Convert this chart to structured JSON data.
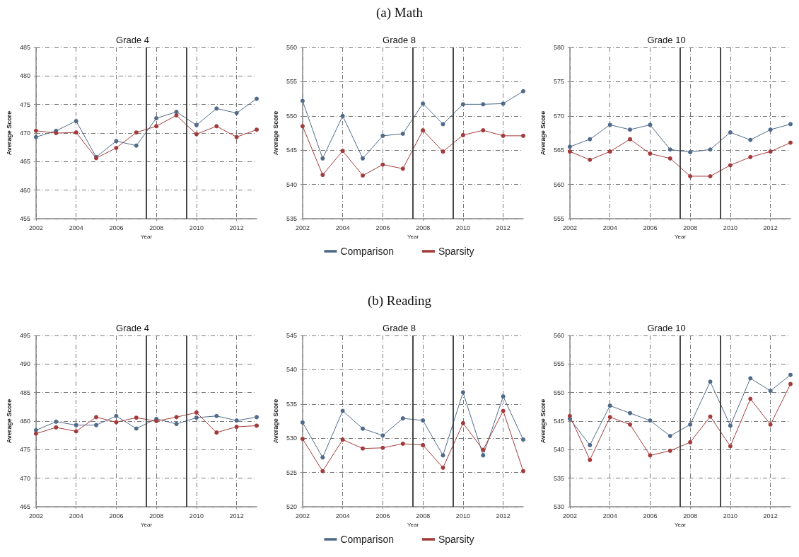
{
  "chart_data": [
    {
      "type": "line",
      "title": "Grade 4",
      "xlabel": "Year",
      "ylabel": "Average Score",
      "x": [
        2002,
        2003,
        2004,
        2005,
        2006,
        2007,
        2008,
        2009,
        2010,
        2011,
        2012,
        2013
      ],
      "xlim": [
        2002,
        2013
      ],
      "xticks": [
        2002,
        2004,
        2006,
        2008,
        2010,
        2012
      ],
      "ylim": [
        455,
        485
      ],
      "yticks": [
        455,
        460,
        465,
        470,
        475,
        480,
        485
      ],
      "grid": true,
      "marker": "circle",
      "legend": false,
      "ref_lines": [
        {
          "axis": "x",
          "value": 2007.5,
          "color": "#333333"
        },
        {
          "axis": "x",
          "value": 2009.5,
          "color": "#333333"
        }
      ],
      "series": [
        {
          "color": "#4f6a8a",
          "values": [
            469.3,
            470.4,
            472.1,
            465.8,
            468.6,
            467.8,
            472.6,
            473.7,
            471.4,
            474.3,
            473.5,
            476.0
          ]
        },
        {
          "color": "#a33b3b",
          "values": [
            470.4,
            470.0,
            470.1,
            465.6,
            467.4,
            470.1,
            471.2,
            473.1,
            469.8,
            471.2,
            469.3,
            470.6
          ]
        }
      ]
    },
    {
      "type": "line",
      "title": "Grade 8",
      "xlabel": "Year",
      "ylabel": "Average Score",
      "annotations": [
        "(a) Math"
      ],
      "x": [
        2002,
        2003,
        2004,
        2005,
        2006,
        2007,
        2008,
        2009,
        2010,
        2011,
        2012,
        2013
      ],
      "xlim": [
        2002,
        2013
      ],
      "xticks": [
        2002,
        2004,
        2006,
        2008,
        2010,
        2012
      ],
      "ylim": [
        535,
        560
      ],
      "yticks": [
        535,
        540,
        545,
        550,
        555,
        560
      ],
      "grid": true,
      "marker": "circle",
      "legend": "bottom",
      "ref_lines": [
        {
          "axis": "x",
          "value": 2007.5,
          "color": "#333333"
        },
        {
          "axis": "x",
          "value": 2009.5,
          "color": "#333333"
        }
      ],
      "series": [
        {
          "name": "Comparison",
          "color": "#4f6a8a",
          "values": [
            552.2,
            543.8,
            550.0,
            543.8,
            547.1,
            547.4,
            551.8,
            548.8,
            551.7,
            551.7,
            551.8,
            553.6
          ]
        },
        {
          "name": "Sparsity",
          "color": "#a33b3b",
          "values": [
            548.5,
            541.4,
            544.9,
            541.3,
            542.9,
            542.3,
            547.9,
            544.8,
            547.2,
            547.9,
            547.1,
            547.1
          ]
        }
      ]
    },
    {
      "type": "line",
      "title": "Grade 10",
      "xlabel": "Year",
      "ylabel": "Average Score",
      "x": [
        2002,
        2003,
        2004,
        2005,
        2006,
        2007,
        2008,
        2009,
        2010,
        2011,
        2012,
        2013
      ],
      "xlim": [
        2002,
        2013
      ],
      "xticks": [
        2002,
        2004,
        2006,
        2008,
        2010,
        2012
      ],
      "ylim": [
        555,
        580
      ],
      "yticks": [
        555,
        560,
        565,
        570,
        575,
        580
      ],
      "grid": true,
      "marker": "circle",
      "legend": false,
      "ref_lines": [
        {
          "axis": "x",
          "value": 2007.5,
          "color": "#333333"
        },
        {
          "axis": "x",
          "value": 2009.5,
          "color": "#333333"
        }
      ],
      "series": [
        {
          "color": "#4f6a8a",
          "values": [
            565.5,
            566.6,
            568.7,
            568.0,
            568.7,
            565.1,
            564.7,
            565.1,
            567.6,
            566.5,
            568.0,
            568.8
          ]
        },
        {
          "color": "#a33b3b",
          "values": [
            564.8,
            563.6,
            564.8,
            566.6,
            564.5,
            563.8,
            561.2,
            561.2,
            562.8,
            564.0,
            564.8,
            566.1
          ]
        }
      ]
    },
    {
      "type": "line",
      "title": "Grade 4",
      "xlabel": "Year",
      "ylabel": "Average Score",
      "x": [
        2002,
        2003,
        2004,
        2005,
        2006,
        2007,
        2008,
        2009,
        2010,
        2011,
        2012,
        2013
      ],
      "xlim": [
        2002,
        2013
      ],
      "xticks": [
        2002,
        2004,
        2006,
        2008,
        2010,
        2012
      ],
      "ylim": [
        465,
        495
      ],
      "yticks": [
        465,
        470,
        475,
        480,
        485,
        490,
        495
      ],
      "grid": true,
      "marker": "circle",
      "legend": false,
      "ref_lines": [
        {
          "axis": "x",
          "value": 2007.5,
          "color": "#333333"
        },
        {
          "axis": "x",
          "value": 2009.5,
          "color": "#333333"
        }
      ],
      "series": [
        {
          "color": "#4f6a8a",
          "values": [
            478.4,
            479.9,
            479.3,
            479.3,
            480.9,
            478.7,
            480.4,
            479.5,
            480.6,
            480.9,
            480.1,
            480.7
          ]
        },
        {
          "color": "#a33b3b",
          "values": [
            477.8,
            478.9,
            478.2,
            480.7,
            479.8,
            480.6,
            480.0,
            480.7,
            481.5,
            478.0,
            479.0,
            479.2
          ]
        }
      ]
    },
    {
      "type": "line",
      "title": "Grade 8",
      "xlabel": "Year",
      "ylabel": "Average Score",
      "annotations": [
        "(b) Reading"
      ],
      "x": [
        2002,
        2003,
        2004,
        2005,
        2006,
        2007,
        2008,
        2009,
        2010,
        2011,
        2012,
        2013
      ],
      "xlim": [
        2002,
        2013
      ],
      "xticks": [
        2002,
        2004,
        2006,
        2008,
        2010,
        2012
      ],
      "ylim": [
        520,
        545
      ],
      "yticks": [
        520,
        525,
        530,
        535,
        540,
        545
      ],
      "grid": true,
      "marker": "circle",
      "legend": "bottom",
      "ref_lines": [
        {
          "axis": "x",
          "value": 2007.5,
          "color": "#333333"
        },
        {
          "axis": "x",
          "value": 2009.5,
          "color": "#333333"
        }
      ],
      "series": [
        {
          "name": "Comparison",
          "color": "#4f6a8a",
          "values": [
            532.3,
            527.2,
            534.0,
            531.4,
            530.4,
            532.9,
            532.6,
            527.5,
            536.7,
            527.5,
            536.1,
            529.8
          ]
        },
        {
          "name": "Sparsity",
          "color": "#a33b3b",
          "values": [
            529.9,
            525.2,
            529.8,
            528.5,
            528.6,
            529.2,
            529.0,
            525.7,
            532.2,
            528.3,
            534.0,
            525.2
          ]
        }
      ]
    },
    {
      "type": "line",
      "title": "Grade 10",
      "xlabel": "Year",
      "ylabel": "Average Score",
      "x": [
        2002,
        2003,
        2004,
        2005,
        2006,
        2007,
        2008,
        2009,
        2010,
        2011,
        2012,
        2013
      ],
      "xlim": [
        2002,
        2013
      ],
      "xticks": [
        2002,
        2004,
        2006,
        2008,
        2010,
        2012
      ],
      "ylim": [
        530,
        560
      ],
      "yticks": [
        530,
        535,
        540,
        545,
        550,
        555,
        560
      ],
      "grid": true,
      "marker": "circle",
      "legend": false,
      "ref_lines": [
        {
          "axis": "x",
          "value": 2007.5,
          "color": "#333333"
        },
        {
          "axis": "x",
          "value": 2009.5,
          "color": "#333333"
        }
      ],
      "series": [
        {
          "color": "#4f6a8a",
          "values": [
            545.4,
            540.8,
            547.7,
            546.4,
            545.1,
            542.4,
            544.4,
            551.9,
            544.2,
            552.5,
            550.3,
            553.1
          ]
        },
        {
          "color": "#a33b3b",
          "values": [
            545.9,
            538.2,
            545.7,
            544.4,
            539.0,
            539.8,
            541.3,
            545.8,
            540.6,
            548.9,
            544.4,
            551.5
          ]
        }
      ]
    }
  ]
}
